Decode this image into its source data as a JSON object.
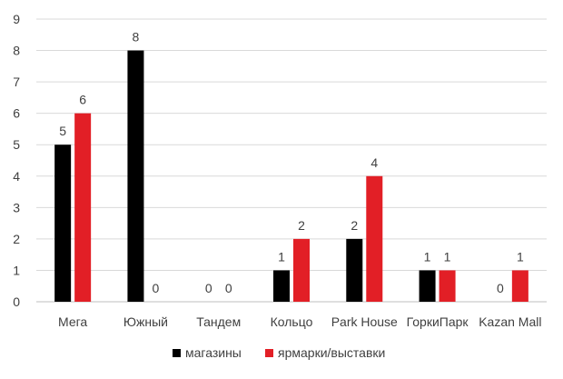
{
  "chart_data": {
    "type": "bar",
    "title": "",
    "xlabel": "",
    "ylabel": "",
    "ylim": [
      0,
      9
    ],
    "yticks": [
      "0",
      "1",
      "2",
      "3",
      "4",
      "5",
      "6",
      "7",
      "8",
      "9"
    ],
    "grid": true,
    "legend_position": "bottom",
    "categories": [
      "Мега",
      "Южный",
      "Тандем",
      "Кольцо",
      "Park House",
      "ГоркиПарк",
      "Kazan Mall"
    ],
    "series": [
      {
        "name": "магазины",
        "color": "#000000",
        "values": [
          5,
          8,
          null,
          1,
          2,
          1,
          0
        ],
        "labels": [
          "5",
          "8",
          "0",
          "1",
          "2",
          "1",
          "0"
        ]
      },
      {
        "name": "ярмарки/выставки",
        "color": "#e21f26",
        "values": [
          6,
          0,
          0,
          2,
          4,
          1,
          1
        ],
        "labels": [
          "6",
          "0",
          "0",
          "2",
          "4",
          "1",
          "1"
        ]
      }
    ]
  }
}
